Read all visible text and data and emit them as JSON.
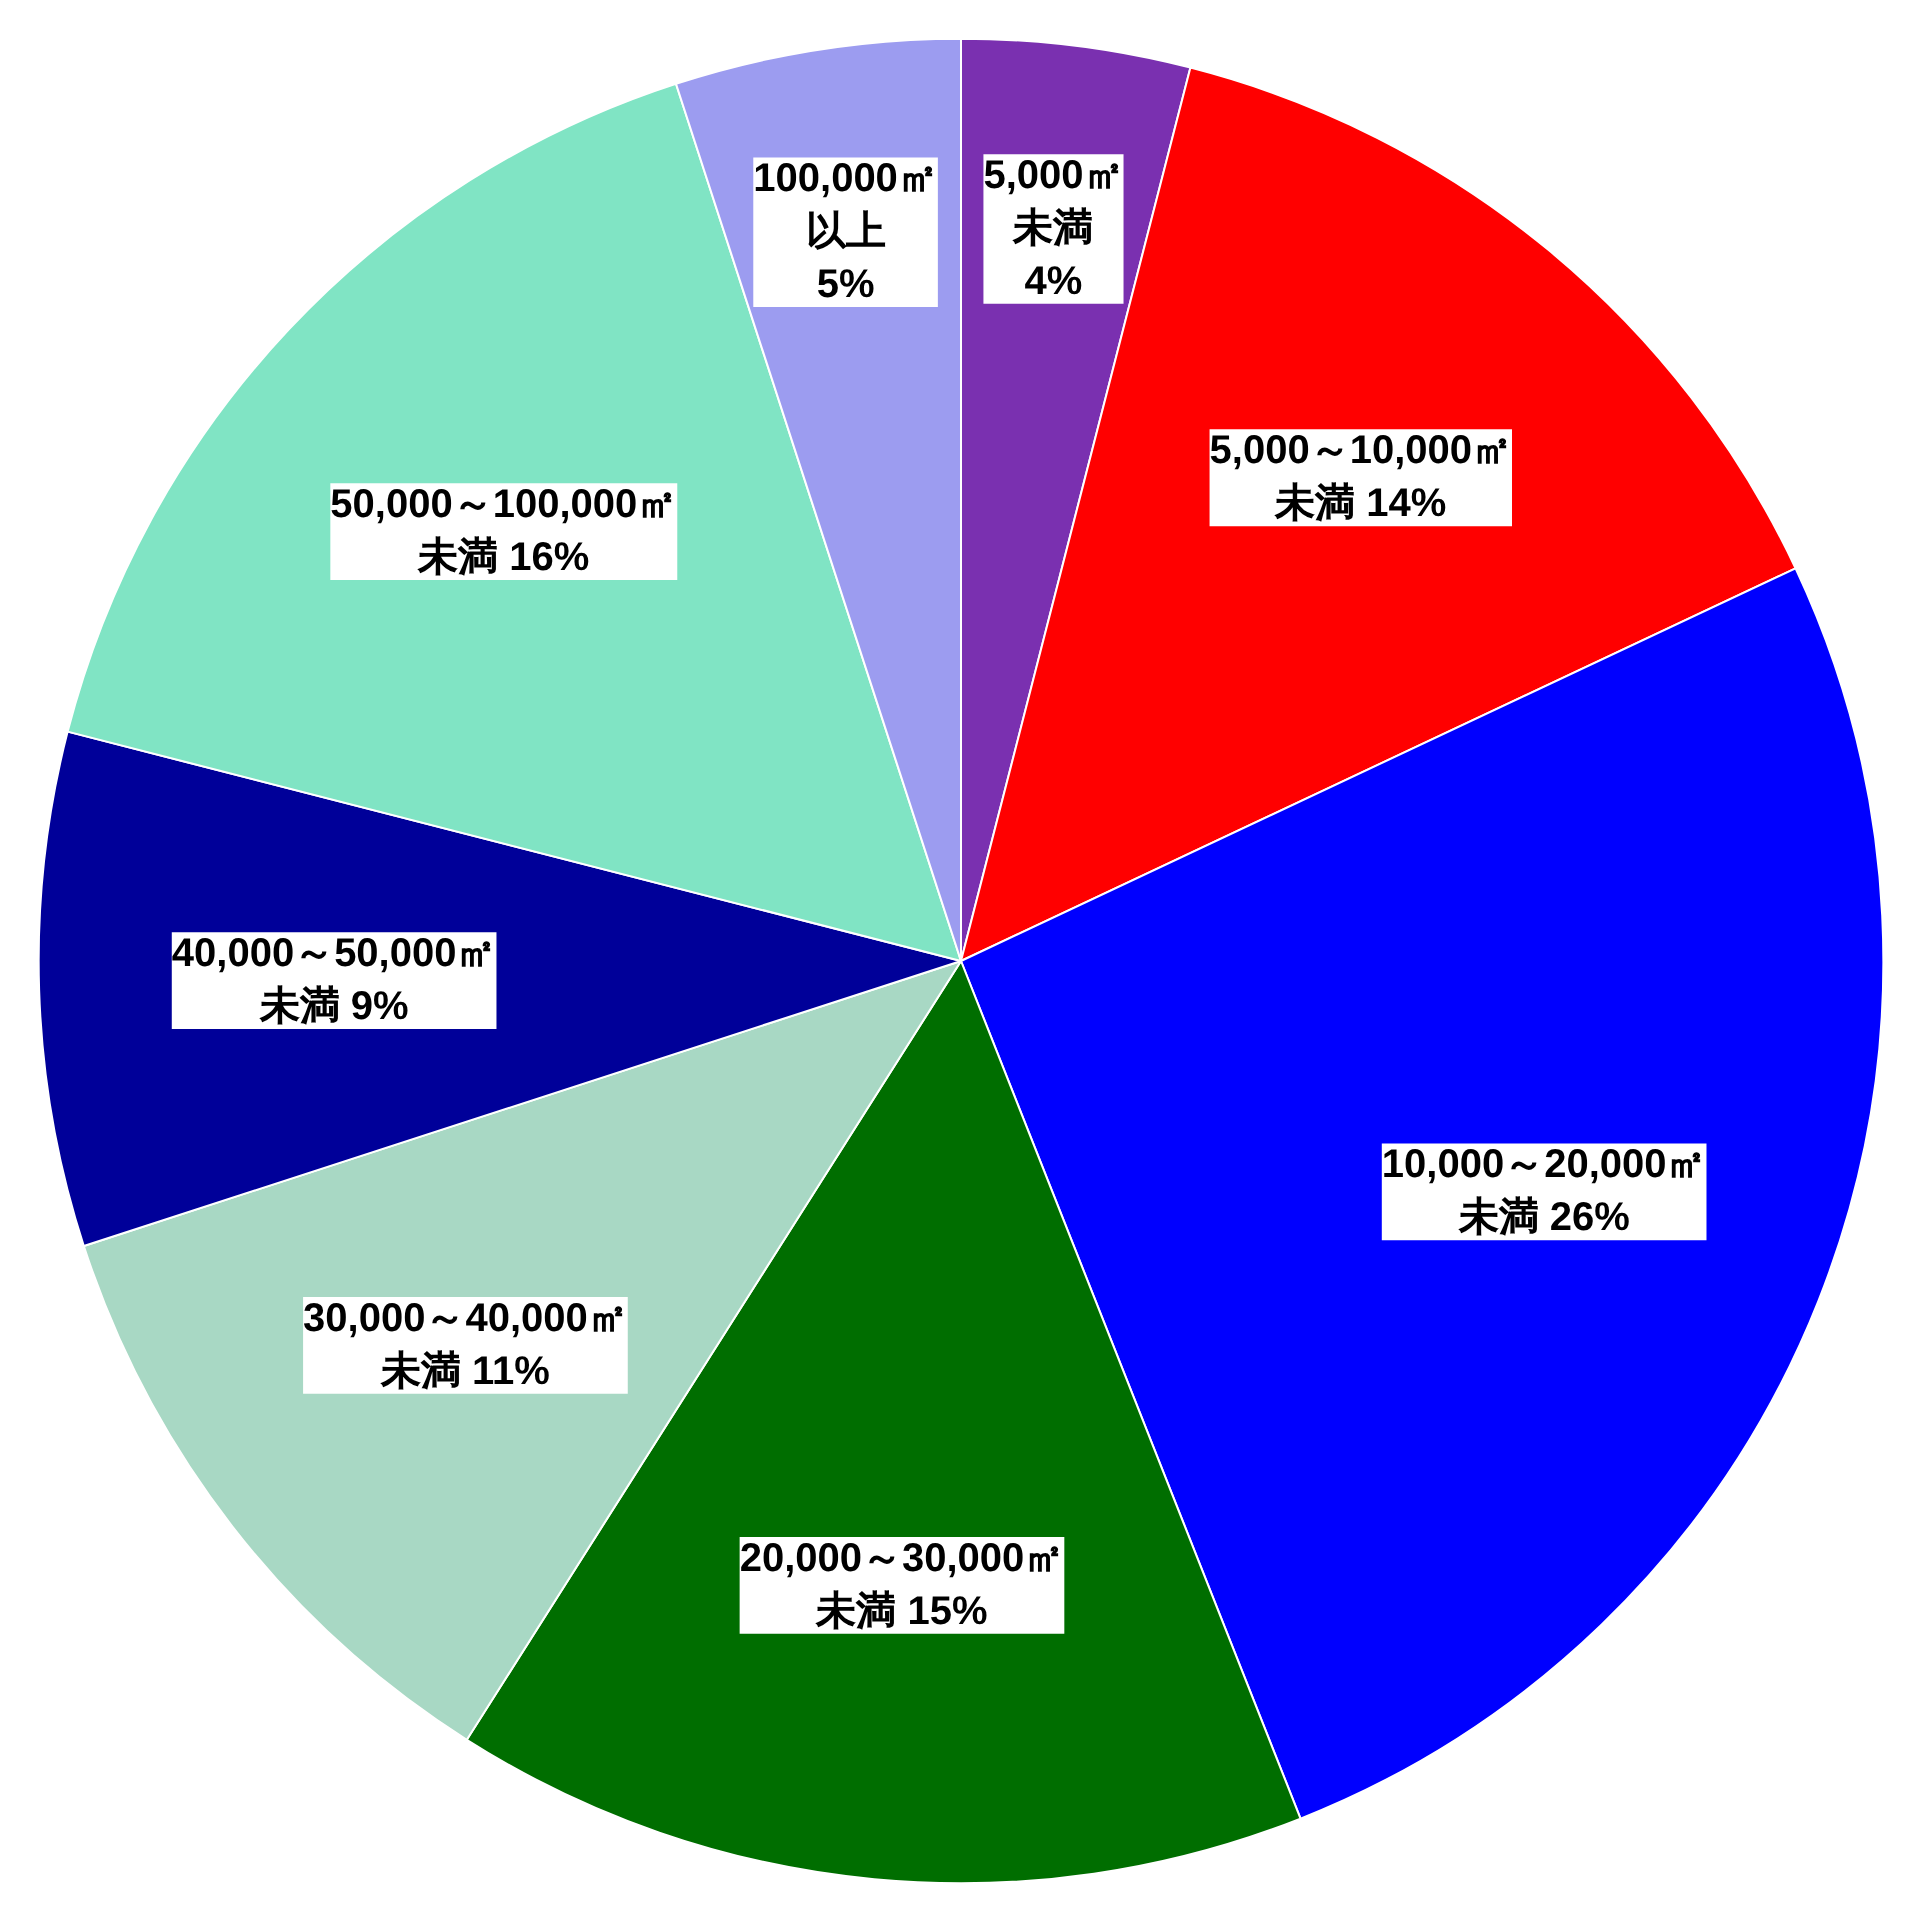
{
  "chart_data": {
    "type": "pie",
    "categories": [
      "5,000㎡未満",
      "5,000～10,000㎡未満",
      "10,000～20,000㎡未満",
      "20,000～30,000㎡未満",
      "30,000～40,000㎡未満",
      "40,000～50,000㎡未満",
      "50,000～100,000㎡未満",
      "100,000㎡以上"
    ],
    "values": [
      4,
      14,
      26,
      15,
      11,
      9,
      16,
      5
    ],
    "value_labels": [
      "4%",
      "14%",
      "26%",
      "15%",
      "11%",
      "9%",
      "16%",
      "5%"
    ],
    "colors": [
      "#7a30b0",
      "#ff0000",
      "#0000ff",
      "#006e00",
      "#a8d8c4",
      "#000099",
      "#80e4c4",
      "#9c9cf0"
    ]
  }
}
